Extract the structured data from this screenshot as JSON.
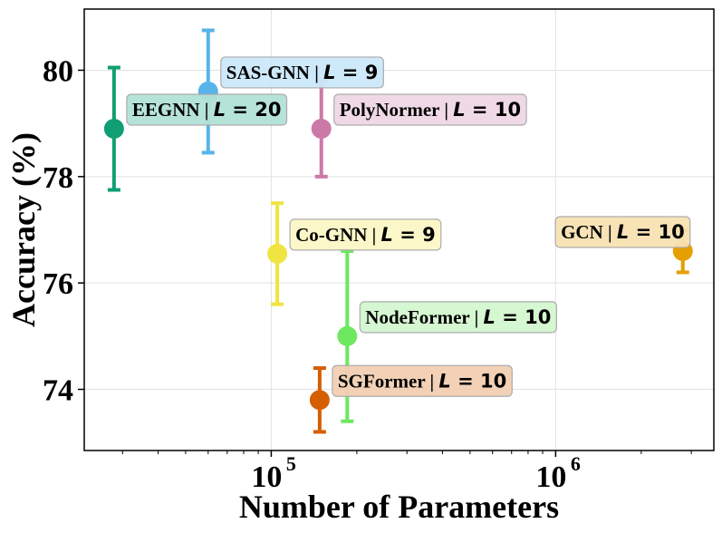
{
  "chart_data": {
    "type": "scatter",
    "xlabel": "Number of Parameters",
    "ylabel": "Accuracy (%)",
    "xscale": "log",
    "xlim": [
      22000,
      3600000
    ],
    "ylim": [
      72.85,
      81.15
    ],
    "x_ticks": [
      {
        "value": 100000,
        "base": "10",
        "exp": "5"
      },
      {
        "value": 1000000,
        "base": "10",
        "exp": "6"
      }
    ],
    "y_ticks": [
      74,
      76,
      78,
      80
    ],
    "grid": true,
    "points": [
      {
        "name": "EEGNN",
        "L": "20",
        "x": 28000,
        "y": 78.9,
        "err": 1.15,
        "color": "#109e73",
        "label_bg": "#b3e2d6"
      },
      {
        "name": "SAS-GNN",
        "L": "9",
        "x": 60000,
        "y": 79.6,
        "err": 1.15,
        "color": "#56b4e9",
        "label_bg": "#cce8f9"
      },
      {
        "name": "PolyNormer",
        "L": "10",
        "x": 150000,
        "y": 78.9,
        "err": 0.9,
        "color": "#cc79a7",
        "label_bg": "#f0d7e5"
      },
      {
        "name": "Co-GNN",
        "L": "9",
        "x": 105000,
        "y": 76.55,
        "err": 0.95,
        "color": "#f0e442",
        "label_bg": "#fbf7c6"
      },
      {
        "name": "NodeFormer",
        "L": "10",
        "x": 185000,
        "y": 75.0,
        "err": 1.6,
        "color": "#6de860",
        "label_bg": "#d3f7cf"
      },
      {
        "name": "SGFormer",
        "L": "10",
        "x": 148000,
        "y": 73.8,
        "err": 0.6,
        "color": "#d55e00",
        "label_bg": "#f2cfb3"
      },
      {
        "name": "GCN",
        "L": "10",
        "x": 2800000,
        "y": 76.6,
        "err": 0.4,
        "color": "#e69f00",
        "label_bg": "#f7e2b3"
      }
    ]
  }
}
